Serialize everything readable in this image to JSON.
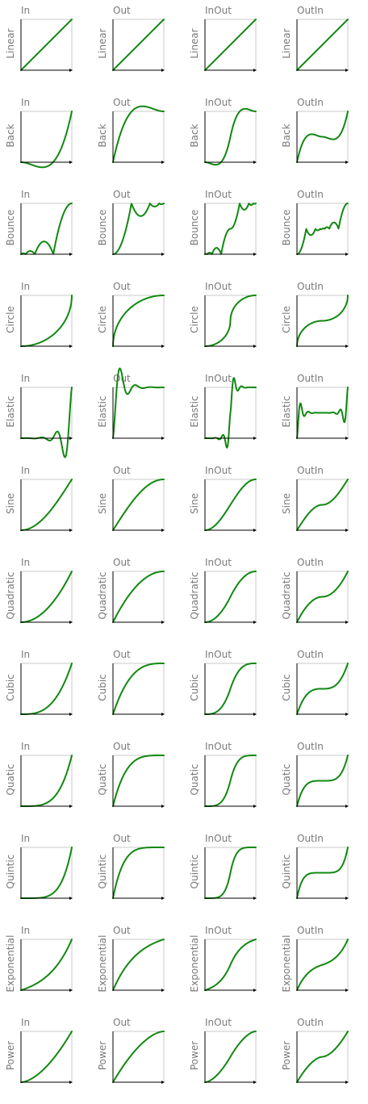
{
  "chart_data": {
    "type": "line",
    "description_note": "",
    "variants": [
      "In",
      "Out",
      "InOut",
      "OutIn"
    ],
    "easings": [
      "Linear",
      "Back",
      "Bounce",
      "Circle",
      "Elastic",
      "Sine",
      "Quadratic",
      "Cubic",
      "Quatic",
      "Quintic",
      "Exponential",
      "Power"
    ],
    "line_color": "#118811",
    "axis_color": "#000000",
    "frame_color": "#c8c8c8",
    "label_color": "#7a7a7a",
    "xlim": [
      0,
      1
    ],
    "ylim": [
      0,
      1
    ]
  }
}
